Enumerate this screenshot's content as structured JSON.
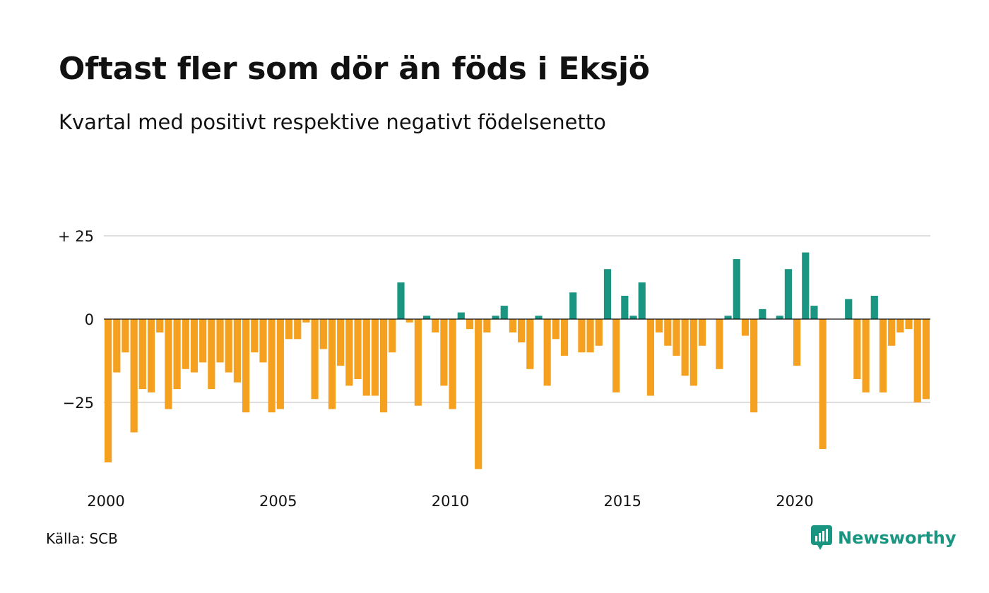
{
  "title": "Oftast fler som dör än föds i Eksjö",
  "subtitle": "Kvartal med positivt respektive negativt födelsenetto",
  "source": "Källa: SCB",
  "brand": "Newsworthy",
  "colors": {
    "positive": "#1a9582",
    "negative": "#f5a01f",
    "grid": "#dddddd",
    "brand": "#1a9582"
  },
  "chart_data": {
    "type": "bar",
    "x_start": 2000,
    "x_step": 0.25,
    "xlim": [
      2000,
      2024
    ],
    "ylim": [
      -46,
      25
    ],
    "y_ticks": [
      {
        "value": 25,
        "label": "+ 25"
      },
      {
        "value": 0,
        "label": "0"
      },
      {
        "value": -25,
        "label": "−25"
      }
    ],
    "x_ticks": [
      {
        "value": 2000,
        "label": "2000"
      },
      {
        "value": 2005,
        "label": "2005"
      },
      {
        "value": 2010,
        "label": "2010"
      },
      {
        "value": 2015,
        "label": "2015"
      },
      {
        "value": 2020,
        "label": "2020"
      }
    ],
    "values": [
      -43,
      -16,
      -10,
      -34,
      -21,
      -22,
      -4,
      -27,
      -21,
      -15,
      -16,
      -13,
      -21,
      -13,
      -16,
      -19,
      -28,
      -10,
      -13,
      -28,
      -27,
      -6,
      -6,
      -1,
      -24,
      -9,
      -27,
      -14,
      -20,
      -18,
      -23,
      -23,
      -28,
      -10,
      11,
      -1,
      -26,
      1,
      -4,
      -20,
      -27,
      2,
      -3,
      -45,
      -4,
      1,
      4,
      -4,
      -7,
      -15,
      1,
      -20,
      -6,
      -11,
      8,
      -10,
      -10,
      -8,
      15,
      -22,
      7,
      1,
      11,
      -23,
      -4,
      -8,
      -11,
      -17,
      -20,
      -8,
      0,
      -15,
      1,
      18,
      -5,
      -28,
      3,
      0,
      1,
      15,
      -14,
      20,
      4,
      -39,
      0,
      0,
      6,
      -18,
      -22,
      7,
      -22,
      -8,
      -4,
      -3,
      -25,
      -24
    ]
  }
}
